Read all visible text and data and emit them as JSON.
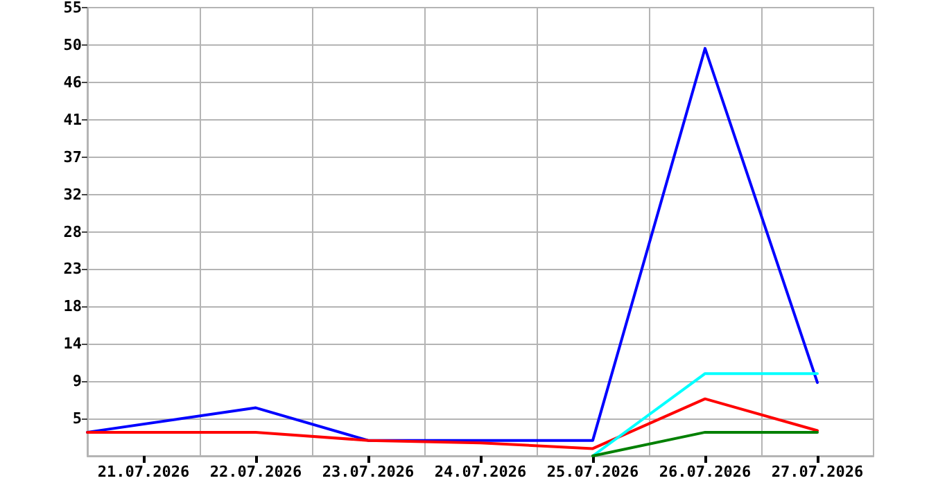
{
  "chart_data": {
    "type": "line",
    "xlim": [
      "2026-07-20T12:00",
      "2026-07-27T12:00"
    ],
    "xticks": [
      {
        "value": "2026-07-21",
        "label": "21.07.2026"
      },
      {
        "value": "2026-07-22",
        "label": "22.07.2026"
      },
      {
        "value": "2026-07-23",
        "label": "23.07.2026"
      },
      {
        "value": "2026-07-24",
        "label": "24.07.2026"
      },
      {
        "value": "2026-07-25",
        "label": "25.07.2026"
      },
      {
        "value": "2026-07-26",
        "label": "26.07.2026"
      },
      {
        "value": "2026-07-27",
        "label": "27.07.2026"
      },
      {
        "value": "2026-07-21T12:00",
        "label": null
      },
      {
        "value": "2026-07-22T12:00",
        "label": null
      },
      {
        "value": "2026-07-23T12:00",
        "label": null
      },
      {
        "value": "2026-07-24T12:00",
        "label": null
      },
      {
        "value": "2026-07-25T12:00",
        "label": null
      },
      {
        "value": "2026-07-26T12:00",
        "label": null
      }
    ],
    "ylim": [
      0,
      55
    ],
    "yticks": [
      {
        "value": 4.583,
        "label": "5"
      },
      {
        "value": 9.167,
        "label": "9"
      },
      {
        "value": 13.75,
        "label": "14"
      },
      {
        "value": 18.333,
        "label": "18"
      },
      {
        "value": 22.917,
        "label": "23"
      },
      {
        "value": 27.5,
        "label": "28"
      },
      {
        "value": 32.083,
        "label": "32"
      },
      {
        "value": 36.667,
        "label": "37"
      },
      {
        "value": 41.25,
        "label": "41"
      },
      {
        "value": 45.833,
        "label": "46"
      },
      {
        "value": 50.417,
        "label": "50"
      },
      55
    ],
    "grid": true,
    "marker": "none",
    "line_style": "solid",
    "series": [
      {
        "color": "#0000ff",
        "x": [
          "2026-07-20T12:00",
          "2026-07-22",
          "2026-07-23",
          "2026-07-24",
          "2026-07-25",
          "2026-07-26",
          "2026-07-27"
        ],
        "values": [
          2.9,
          5.9,
          1.9,
          1.9,
          1.9,
          50,
          9
        ]
      },
      {
        "color": "#ff0000",
        "x": [
          "2026-07-20T12:00",
          "2026-07-22",
          "2026-07-23",
          "2026-07-24",
          "2026-07-25",
          "2026-07-26",
          "2026-07-27"
        ],
        "values": [
          2.9,
          2.9,
          1.9,
          1.6,
          0.9,
          7,
          3.1
        ]
      },
      {
        "color": "#00ffff",
        "x": [
          "2026-07-25",
          "2026-07-26",
          "2026-07-27"
        ],
        "values": [
          0,
          10.1,
          10.1
        ]
      },
      {
        "color": "#008000",
        "x": [
          "2026-07-25",
          "2026-07-26",
          "2026-07-27"
        ],
        "values": [
          0,
          2.9,
          2.9
        ]
      }
    ]
  }
}
